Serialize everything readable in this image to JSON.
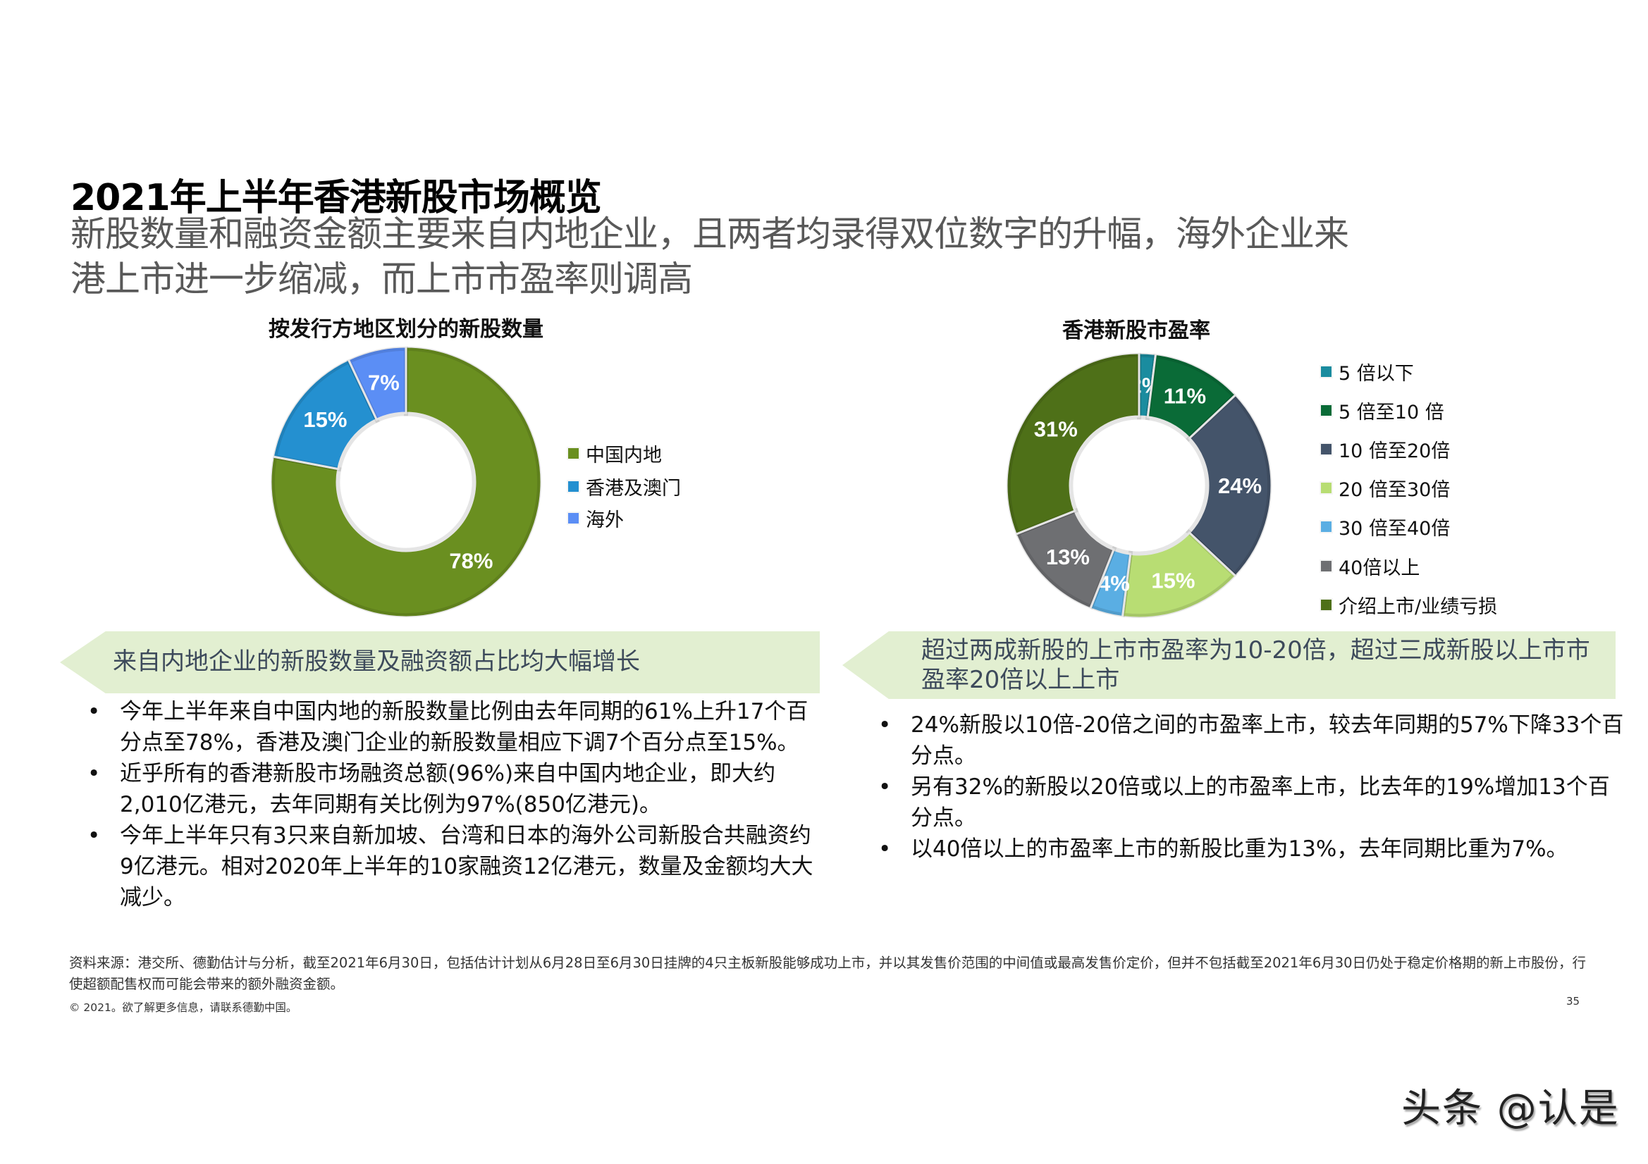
{
  "header": {
    "title": "2021年上半年香港新股市场概览",
    "subtitle_line1": "新股数量和融资金额主要来自内地企业，且两者均录得双位数字的升幅，海外企业来",
    "subtitle_line2": "港上市进一步缩减，而上市市盈率则调高"
  },
  "left_chart": {
    "title": "按发行方地区划分的新股数量",
    "legend": [
      {
        "label": "中国内地",
        "color": "#6a8f20"
      },
      {
        "label": "香港及澳门",
        "color": "#2490d0"
      },
      {
        "label": "海外",
        "color": "#5b8ef5"
      }
    ],
    "labels": [
      "78%",
      "15%",
      "7%"
    ]
  },
  "right_chart": {
    "title": "香港新股市盈率",
    "legend": [
      {
        "label": "5 倍以下",
        "color": "#1a8c9f"
      },
      {
        "label": "5 倍至10 倍",
        "color": "#0a6b37"
      },
      {
        "label": "10 倍至20倍",
        "color": "#44546a"
      },
      {
        "label": "20 倍至30倍",
        "color": "#b8dd73"
      },
      {
        "label": "30 倍至40倍",
        "color": "#5aaee3"
      },
      {
        "label": "40倍以上",
        "color": "#6e6f72"
      },
      {
        "label": "介绍上市/业绩亏损",
        "color": "#4e7018"
      }
    ],
    "labels": [
      "2%",
      "11%",
      "24%",
      "15%",
      "4%",
      "13%",
      "31%"
    ]
  },
  "chart_data": [
    {
      "type": "pie",
      "title": "按发行方地区划分的新股数量",
      "categories": [
        "中国内地",
        "香港及澳门",
        "海外"
      ],
      "values": [
        78,
        15,
        7
      ],
      "unit": "%",
      "colors": [
        "#6a8f20",
        "#2490d0",
        "#5b8ef5"
      ],
      "donut": true,
      "legend_position": "right"
    },
    {
      "type": "pie",
      "title": "香港新股市盈率",
      "categories": [
        "5 倍以下",
        "5 倍至10 倍",
        "10 倍至20倍",
        "20 倍至30倍",
        "30 倍至40倍",
        "40倍以上",
        "介绍上市/业绩亏损"
      ],
      "values": [
        2,
        11,
        24,
        15,
        4,
        13,
        31
      ],
      "unit": "%",
      "colors": [
        "#1a8c9f",
        "#0a6b37",
        "#44546a",
        "#b8dd73",
        "#5aaee3",
        "#6e6f72",
        "#4e7018"
      ],
      "donut": true,
      "legend_position": "right"
    }
  ],
  "left_panel": {
    "banner": "来自内地企业的新股数量及融资额占比均大幅增长",
    "bullet_symbol": "•",
    "bullets": [
      "今年上半年来自中国内地的新股数量比例由去年同期的61%上升17个百分点至78%，香港及澳门企业的新股数量相应下调7个百分点至15%。",
      "近乎所有的香港新股市场融资总额(96%)来自中国内地企业，即大约2,010亿港元，去年同期有关比例为97%(850亿港元)。",
      "今年上半年只有3只来自新加坡、台湾和日本的海外公司新股合共融资约9亿港元。相对2020年上半年的10家融资12亿港元，数量及金额均大大减少。"
    ]
  },
  "right_panel": {
    "banner": "超过两成新股的上市市盈率为10-20倍，超过三成新股以上市市盈率20倍以上上市",
    "bullet_symbol": "•",
    "bullets": [
      "24%新股以10倍-20倍之间的市盈率上市，较去年同期的57%下降33个百分点。",
      "另有32%的新股以20倍或以上的市盈率上市，比去年的19%增加13个百分点。",
      "以40倍以上的市盈率上市的新股比重为13%，去年同期比重为7%。"
    ]
  },
  "footer": {
    "source": "资料来源：港交所、德勤估计与分析，截至2021年6月30日，包括估计计划从6月28日至6月30日挂牌的4只主板新股能够成功上市，并以其发售价范围的中间值或最高发售价定价，但并不包括截至2021年6月30日仍处于稳定价格期的新上市股份，行使超额配售权而可能会带来的额外融资金额。",
    "copyright": "© 2021。欲了解更多信息，请联系德勤中国。",
    "page_number": "35"
  },
  "watermark": "头条 @认是"
}
